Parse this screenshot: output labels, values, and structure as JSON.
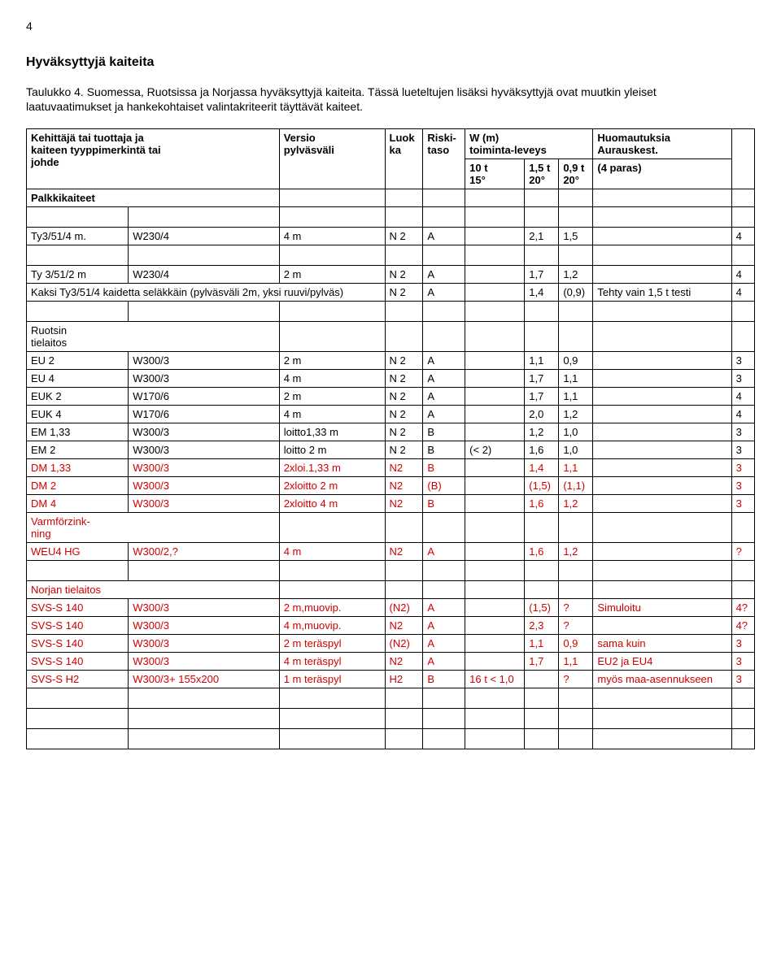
{
  "page_number": "4",
  "section_title": "Hyväksyttyjä kaiteita",
  "intro": "Taulukko 4. Suomessa, Ruotsissa ja Norjassa hyväksyttyjä kaiteita. Tässä lueteltujen lisäksi hyväksyttyjä ovat muutkin yleiset laatuvaatimukset ja hankekohtaiset valintakriteerit täyttävät kaiteet.",
  "head": {
    "col1_l1": "Kehittäjä tai tuottaja ja",
    "col1_l2": "kaiteen tyyppimerkintä tai",
    "col1_l3": "johde",
    "col2_l1": "Versio",
    "col2_l2": "pylväsväli",
    "col3_l1": "Luok",
    "col3_l2": "ka",
    "col4_l1": "Riski-",
    "col4_l2": "taso",
    "col5_l1": "W (m)",
    "col5_l2": "toiminta-leveys",
    "sub1_l1": "10 t",
    "sub1_l2": "15°",
    "sub2_l1": "1,5 t",
    "sub2_l2": "20°",
    "sub3_l1": "0,9 t",
    "sub3_l2": "20°",
    "col6_l1": "Huomautuksia",
    "col6_l2": "Aurauskest.",
    "col6_l3": "(4 paras)"
  },
  "group_palkki": "Palkkikaiteet",
  "rows_palkki": [
    {
      "c0": "Ty3/51/4 m.",
      "c1": "W230/4",
      "c2": "4 m",
      "c3": "N 2",
      "c4": "A",
      "c5": "",
      "c6": "2,1",
      "c7": "1,5",
      "c8": "",
      "c9": "4"
    }
  ],
  "rows_ty": [
    {
      "c0": "Ty 3/51/2 m",
      "c1": "W230/4",
      "c2": "2 m",
      "c3": "N 2",
      "c4": "A",
      "c5": "",
      "c6": "1,7",
      "c7": "1,2",
      "c8": "",
      "c9": "4"
    },
    {
      "c0": "Kaksi Ty3/51/4 kaidetta seläkkäin (pylväsväli 2m, yksi ruuvi/pylväs)",
      "c3": "N 2",
      "c4": "A",
      "c5": "",
      "c6": "1,4",
      "c7": "(0,9)",
      "c8": "Tehty vain 1,5 t testi",
      "c9": "4",
      "span": true
    }
  ],
  "group_ruotsin_l1": "Ruotsin",
  "group_ruotsin_l2": "tielaitos",
  "rows_ruotsin": [
    {
      "c0": "EU 2",
      "c1": "W300/3",
      "c2": "2 m",
      "c3": "N 2",
      "c4": "A",
      "c5": "",
      "c6": "1,1",
      "c7": "0,9",
      "c8": "",
      "c9": "3"
    },
    {
      "c0": "EU 4",
      "c1": "W300/3",
      "c2": "4 m",
      "c3": "N 2",
      "c4": "A",
      "c5": "",
      "c6": "1,7",
      "c7": "1,1",
      "c8": "",
      "c9": "3"
    },
    {
      "c0": "EUK 2",
      "c1": "W170/6",
      "c2": "2 m",
      "c3": "N 2",
      "c4": "A",
      "c5": "",
      "c6": "1,7",
      "c7": "1,1",
      "c8": "",
      "c9": "4"
    },
    {
      "c0": "EUK 4",
      "c1": "W170/6",
      "c2": "4 m",
      "c3": "N 2",
      "c4": "A",
      "c5": "",
      "c6": "2,0",
      "c7": "1,2",
      "c8": "",
      "c9": "4"
    },
    {
      "c0": "EM 1,33",
      "c1": "W300/3",
      "c2": "loitto1,33 m",
      "c3": "N 2",
      "c4": "B",
      "c5": "",
      "c6": "1,2",
      "c7": "1,0",
      "c8": "",
      "c9": "3"
    },
    {
      "c0": "EM 2",
      "c1": "W300/3",
      "c2": "loitto 2 m",
      "c3": "N 2",
      "c4": "B",
      "c5": "(< 2)",
      "c6": "1,6",
      "c7": "1,0",
      "c8": "",
      "c9": "3"
    },
    {
      "c0": "DM 1,33",
      "c1": "W300/3",
      "c2": "2xloi.1,33 m",
      "c3": "N2",
      "c4": "B",
      "c5": "",
      "c6": "1,4",
      "c7": "1,1",
      "c8": "",
      "c9": "3",
      "red": true,
      "redcols": [
        2
      ]
    },
    {
      "c0": "DM 2",
      "c1": "W300/3",
      "c2": "2xloitto 2 m",
      "c3": "N2",
      "c4": "(B)",
      "c5": "",
      "c6": "(1,5)",
      "c7": "(1,1)",
      "c8": "",
      "c9": "3",
      "red": true,
      "redcols": [
        2
      ]
    },
    {
      "c0": "DM 4",
      "c1": "W300/3",
      "c2": "2xloitto 4 m",
      "c3": "N2",
      "c4": "B",
      "c5": "",
      "c6": "1,6",
      "c7": "1,2",
      "c8": "",
      "c9": "3",
      "red": true,
      "redcols": [
        2
      ]
    }
  ],
  "group_varm_l1": "Varmförzink-",
  "group_varm_l2": "ning",
  "rows_varm": [
    {
      "c0": "WEU4 HG",
      "c1": "W300/2,?",
      "c2": "4 m",
      "c3": "N2",
      "c4": "A",
      "c5": "",
      "c6": "1,6",
      "c7": "1,2",
      "c8": "",
      "c9": "?",
      "red": true
    }
  ],
  "group_norjan": "Norjan tielaitos",
  "rows_norjan": [
    {
      "c0": "SVS-S 140",
      "c1": "W300/3",
      "c2": "2 m,muovip.",
      "c3": "(N2)",
      "c4": "A",
      "c5": "",
      "c6": "(1,5)",
      "c7": "?",
      "c8": "Simuloitu",
      "c9": "4?",
      "red": true
    },
    {
      "c0": "SVS-S 140",
      "c1": "W300/3",
      "c2": "4 m,muovip.",
      "c3": "N2",
      "c4": "A",
      "c5": "",
      "c6": "2,3",
      "c7": "?",
      "c8": "",
      "c9": "4?",
      "red": true
    },
    {
      "c0": "SVS-S 140",
      "c1": "W300/3",
      "c2": "2 m teräspyl",
      "c3": "(N2)",
      "c4": "A",
      "c5": "",
      "c6": "1,1",
      "c7": "0,9",
      "c8": "sama kuin",
      "c9": "3",
      "red": true
    },
    {
      "c0": "SVS-S 140",
      "c1": "W300/3",
      "c2": "4 m teräspyl",
      "c3": "N2",
      "c4": "A",
      "c5": "",
      "c6": "1,7",
      "c7": "1,1",
      "c8": "EU2 ja EU4",
      "c9": "3",
      "red": true
    },
    {
      "c0": "SVS-S H2",
      "c1": "W300/3+ 155x200",
      "c2": "1 m teräspyl",
      "c3": "H2",
      "c4": "B",
      "c5": "16 t < 1,0",
      "c6": "",
      "c7": "?",
      "c8": "myös maa-asennukseen",
      "c9": "3",
      "red": true
    }
  ]
}
